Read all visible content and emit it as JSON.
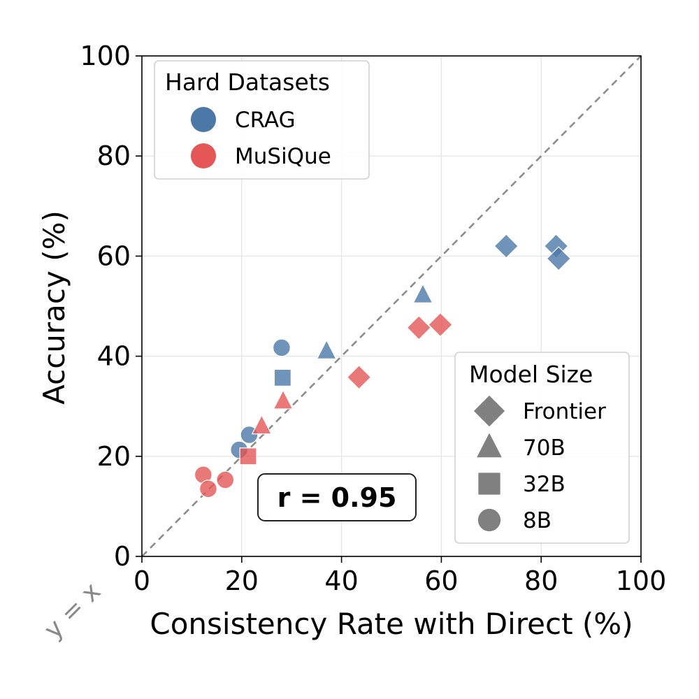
{
  "chart_data": {
    "type": "scatter",
    "xlabel": "Consistency Rate with Direct (%)",
    "ylabel": "Accuracy (%)",
    "xlim": [
      0,
      100
    ],
    "ylim": [
      0,
      100
    ],
    "xticks": [
      "0",
      "20",
      "40",
      "60",
      "80",
      "100"
    ],
    "yticks": [
      "0",
      "20",
      "40",
      "60",
      "80",
      "100"
    ],
    "grid": true,
    "reference_line": {
      "label": "y = x",
      "style": "dashed"
    },
    "annotation": "r = 0.95",
    "legend_datasets": {
      "title": "Hard Datasets",
      "placement": "top-left",
      "entries": [
        {
          "name": "CRAG",
          "color": "#4c78a8"
        },
        {
          "name": "MuSiQue",
          "color": "#e45756"
        }
      ]
    },
    "legend_sizes": {
      "title": "Model Size",
      "placement": "bottom-right",
      "entries": [
        {
          "name": "Frontier",
          "marker": "diamond"
        },
        {
          "name": "70B",
          "marker": "triangle"
        },
        {
          "name": "32B",
          "marker": "square"
        },
        {
          "name": "8B",
          "marker": "circle"
        }
      ]
    },
    "points": [
      {
        "dataset": "CRAG",
        "size": "Frontier",
        "x": 73,
        "y": 62
      },
      {
        "dataset": "CRAG",
        "size": "Frontier",
        "x": 83,
        "y": 62
      },
      {
        "dataset": "CRAG",
        "size": "Frontier",
        "x": 83.5,
        "y": 59.5
      },
      {
        "dataset": "CRAG",
        "size": "70B",
        "x": 56.3,
        "y": 52.2
      },
      {
        "dataset": "CRAG",
        "size": "70B",
        "x": 37,
        "y": 41
      },
      {
        "dataset": "CRAG",
        "size": "32B",
        "x": 28.2,
        "y": 35.7
      },
      {
        "dataset": "CRAG",
        "size": "8B",
        "x": 28,
        "y": 41.7
      },
      {
        "dataset": "CRAG",
        "size": "8B",
        "x": 21.5,
        "y": 24.3
      },
      {
        "dataset": "CRAG",
        "size": "8B",
        "x": 19.5,
        "y": 21.3
      },
      {
        "dataset": "MuSiQue",
        "size": "Frontier",
        "x": 59.8,
        "y": 46.3
      },
      {
        "dataset": "MuSiQue",
        "size": "Frontier",
        "x": 55.5,
        "y": 45.7
      },
      {
        "dataset": "MuSiQue",
        "size": "Frontier",
        "x": 43.5,
        "y": 35.8
      },
      {
        "dataset": "MuSiQue",
        "size": "70B",
        "x": 28.3,
        "y": 31
      },
      {
        "dataset": "MuSiQue",
        "size": "70B",
        "x": 24,
        "y": 26
      },
      {
        "dataset": "MuSiQue",
        "size": "32B",
        "x": 21.3,
        "y": 20
      },
      {
        "dataset": "MuSiQue",
        "size": "8B",
        "x": 12.3,
        "y": 16.3
      },
      {
        "dataset": "MuSiQue",
        "size": "8B",
        "x": 16.7,
        "y": 15.3
      },
      {
        "dataset": "MuSiQue",
        "size": "8B",
        "x": 13.3,
        "y": 13.5
      }
    ]
  }
}
